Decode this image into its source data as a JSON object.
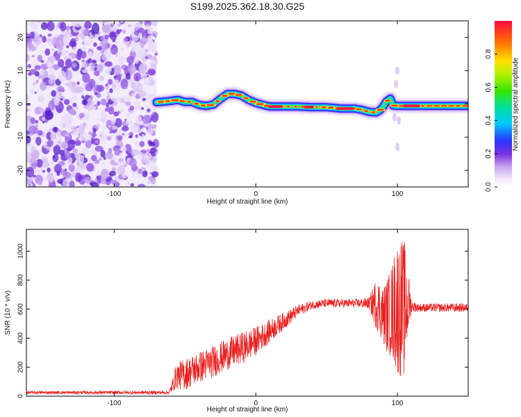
{
  "title": "S199.2025.362.18.30.G25",
  "chart_data": [
    {
      "type": "heatmap",
      "xlabel": "Height of straight line (km)",
      "ylabel": "Frequency (Hz)",
      "xlim": [
        -162,
        150
      ],
      "ylim": [
        -25,
        25
      ],
      "xticks": [
        -100,
        0,
        100
      ],
      "yticks": [
        20,
        10,
        0,
        -10,
        -20
      ],
      "noise_region_x": [
        -162,
        -70
      ],
      "ridge": {
        "x": [
          -70,
          -62,
          -55,
          -50,
          -45,
          -40,
          -35,
          -30,
          -25,
          -20,
          -15,
          -10,
          -5,
          0,
          5,
          10,
          20,
          30,
          40,
          50,
          60,
          70,
          75,
          80,
          85,
          88,
          90,
          92,
          95,
          97,
          100,
          105,
          110,
          120,
          130,
          140,
          150
        ],
        "y": [
          0.5,
          0.8,
          1.2,
          0.6,
          0.6,
          -0.3,
          -0.6,
          -0.2,
          1.5,
          3,
          3,
          2.5,
          1.2,
          0.3,
          -0.3,
          -0.8,
          -0.8,
          -0.8,
          -1,
          -1,
          -1.4,
          -1.4,
          -1.8,
          -2.4,
          -2.6,
          -1.8,
          -0.8,
          0.6,
          1.6,
          -0.5,
          -0.6,
          -0.6,
          -0.6,
          -0.6,
          -0.6,
          -0.6,
          -0.6
        ]
      },
      "colorbar": {
        "label": "Normalized spectral amplitude",
        "ticks": [
          "0.0",
          "0.2",
          "0.4",
          "0.6",
          "0.8"
        ],
        "tick_values": [
          0,
          0.2,
          0.4,
          0.6,
          0.8
        ],
        "range": [
          0,
          1
        ]
      }
    },
    {
      "type": "line",
      "xlabel": "Height of straight line (km)",
      "ylabel": "SNR (10 * v/v)",
      "xlim": [
        -162,
        150
      ],
      "ylim": [
        0,
        1150
      ],
      "xticks": [
        -100,
        0,
        100
      ],
      "yticks": [
        0,
        200,
        400,
        600,
        800,
        1000
      ],
      "color": "#e8211f",
      "envelope": {
        "x": [
          -162,
          -70,
          -61,
          -56,
          -50,
          -40,
          -30,
          -20,
          -10,
          0,
          10,
          20,
          30,
          40,
          50,
          60,
          70,
          80,
          85,
          88,
          90,
          92,
          95,
          100,
          105,
          108,
          110,
          115,
          120,
          130,
          140,
          150
        ],
        "mean": [
          25,
          25,
          25,
          140,
          150,
          200,
          240,
          290,
          330,
          380,
          450,
          520,
          590,
          630,
          640,
          640,
          640,
          640,
          640,
          600,
          560,
          560,
          570,
          620,
          600,
          640,
          620,
          610,
          610,
          610,
          610,
          610
        ],
        "amp": [
          10,
          12,
          12,
          90,
          110,
          110,
          110,
          110,
          110,
          100,
          80,
          60,
          40,
          30,
          30,
          30,
          30,
          40,
          180,
          200,
          200,
          250,
          300,
          480,
          480,
          200,
          40,
          30,
          30,
          30,
          30,
          30
        ]
      }
    }
  ]
}
